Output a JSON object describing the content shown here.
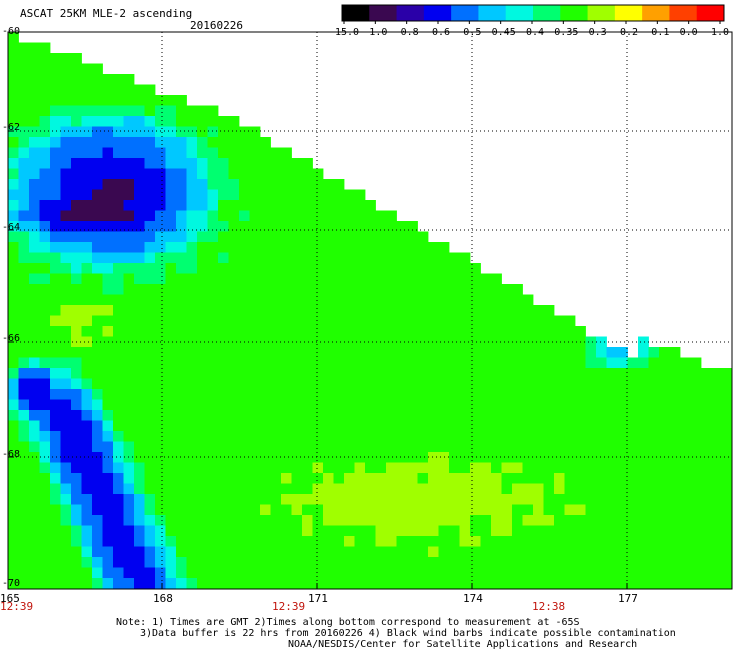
{
  "header": {
    "title": "ASCAT 25KM MLE-2 ascending",
    "date": "20160226"
  },
  "colorbar": {
    "labels": [
      "-15.0",
      "-1.0",
      "-0.8",
      "-0.6",
      "-0.5",
      "-0.45",
      "-0.4",
      "-0.35",
      "-0.3",
      "-0.2",
      "-0.1",
      "0.0",
      "1.0"
    ],
    "colors": [
      "#000000",
      "#3a0850",
      "#2a00a8",
      "#0000f0",
      "#0070ff",
      "#00c8ff",
      "#00f8e0",
      "#00ff70",
      "#20ff00",
      "#a0ff00",
      "#ffff00",
      "#ffa000",
      "#ff4000",
      "#ff0000"
    ]
  },
  "map": {
    "lat_labels": [
      "-60",
      "-62",
      "-64",
      "-66",
      "-68",
      "-70"
    ],
    "lon_labels": [
      "165",
      "168",
      "171",
      "174",
      "177"
    ],
    "time_labels": [
      "12:39",
      "12:39",
      "12:38"
    ],
    "palette": {
      "dark": "#3a0850",
      "blue": "#0000f0",
      "midblue": "#0070ff",
      "cyan": "#00c8ff",
      "aqua": "#00f8e0",
      "green": "#00ff70",
      "lime": "#20ff00",
      "yellowgreen": "#a0ff00",
      "background": "#ffffff"
    }
  },
  "notes": {
    "line1": "Note: 1) Times are GMT 2)Times along bottom correspond to measurement at -65S",
    "line2": "3)Data buffer is 22 hrs from 20160226 4) Black wind barbs indicate possible contamination",
    "line3": "NOAA/NESDIS/Center for Satellite Applications and Research"
  }
}
